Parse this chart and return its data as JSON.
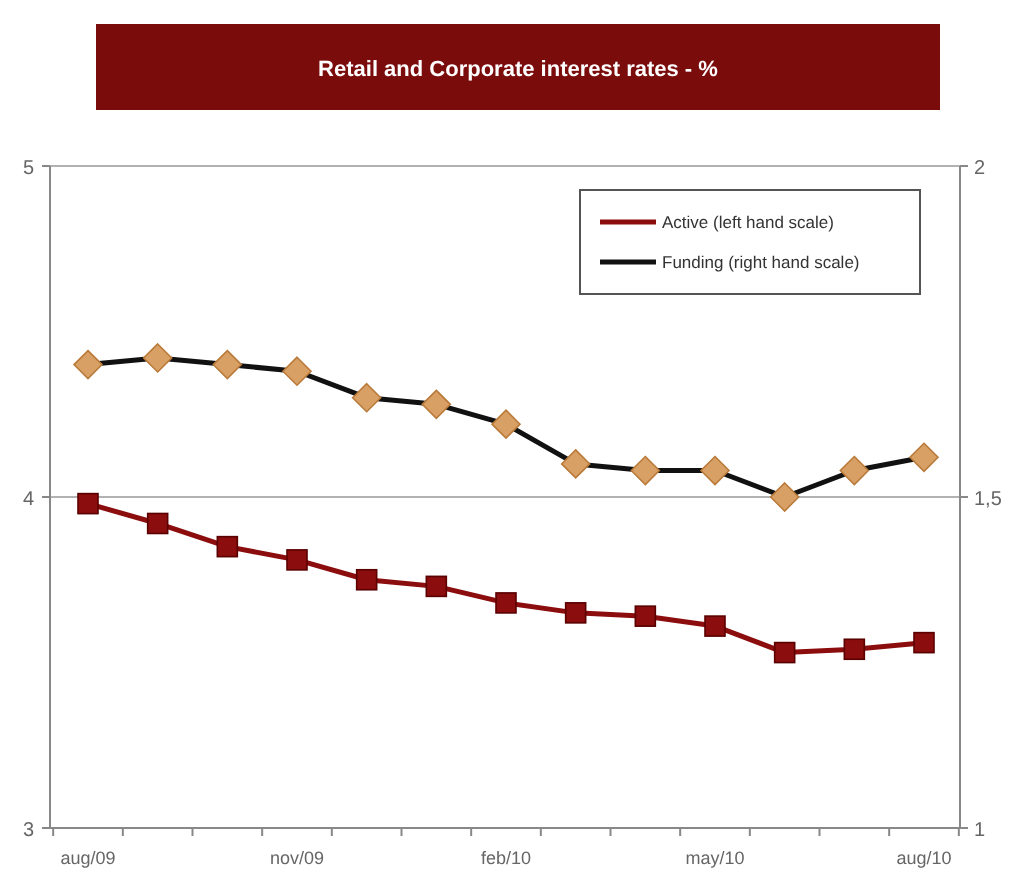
{
  "chart_data": {
    "type": "line",
    "title": "Retail and Corporate interest rates - %",
    "categories": [
      "aug/09",
      null,
      null,
      "nov/09",
      null,
      null,
      "feb/10",
      null,
      null,
      "may/10",
      null,
      null,
      "aug/10"
    ],
    "series": [
      {
        "name": "Active (left hand scale)",
        "color": "#8b0d0d",
        "marker": "square",
        "values": [
          3.98,
          3.92,
          3.85,
          3.81,
          3.75,
          3.73,
          3.68,
          3.65,
          3.64,
          3.61,
          3.53,
          3.54,
          3.56
        ]
      },
      {
        "name": "Funding (right hand scale)",
        "color": "#111111",
        "marker": "diamond",
        "axis": "y2",
        "values": [
          1.7,
          1.71,
          1.7,
          1.69,
          1.65,
          1.64,
          1.61,
          1.55,
          1.54,
          1.54,
          1.5,
          1.54,
          1.56
        ]
      }
    ],
    "ylim": [
      3,
      5
    ],
    "yticks": [
      3,
      4,
      5
    ],
    "y2lim": [
      1,
      2
    ],
    "y2ticks": [
      1,
      {
        "value": 1.5,
        "label": "1,5"
      },
      2
    ],
    "grid": "y",
    "legend": "top right"
  }
}
